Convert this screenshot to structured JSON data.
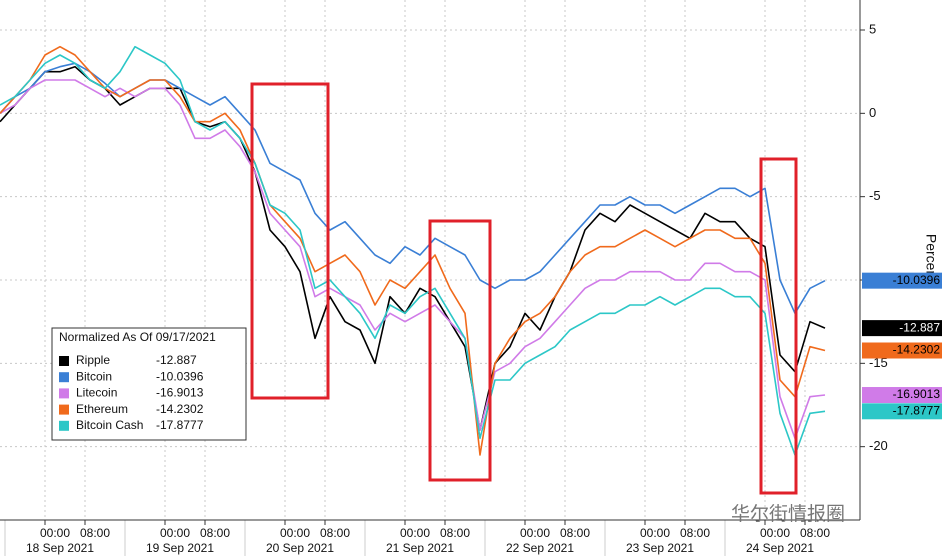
{
  "chart_data": {
    "type": "line",
    "y_label": "Percent",
    "legend_title": "Normalized As Of 09/17/2021",
    "watermark": "华尔街情报圈",
    "x": [
      "2021-09-17 15:00",
      "2021-09-17 18:00",
      "2021-09-17 21:00",
      "2021-09-18 00:00",
      "2021-09-18 03:00",
      "2021-09-18 06:00",
      "2021-09-18 09:00",
      "2021-09-18 12:00",
      "2021-09-18 15:00",
      "2021-09-18 18:00",
      "2021-09-18 21:00",
      "2021-09-19 00:00",
      "2021-09-19 03:00",
      "2021-09-19 06:00",
      "2021-09-19 09:00",
      "2021-09-19 12:00",
      "2021-09-19 15:00",
      "2021-09-19 18:00",
      "2021-09-19 21:00",
      "2021-09-20 00:00",
      "2021-09-20 03:00",
      "2021-09-20 06:00",
      "2021-09-20 09:00",
      "2021-09-20 12:00",
      "2021-09-20 15:00",
      "2021-09-20 18:00",
      "2021-09-20 21:00",
      "2021-09-21 00:00",
      "2021-09-21 03:00",
      "2021-09-21 06:00",
      "2021-09-21 09:00",
      "2021-09-21 12:00",
      "2021-09-21 15:00",
      "2021-09-21 18:00",
      "2021-09-21 21:00",
      "2021-09-22 00:00",
      "2021-09-22 03:00",
      "2021-09-22 06:00",
      "2021-09-22 09:00",
      "2021-09-22 12:00",
      "2021-09-22 15:00",
      "2021-09-22 18:00",
      "2021-09-22 21:00",
      "2021-09-23 00:00",
      "2021-09-23 03:00",
      "2021-09-23 06:00",
      "2021-09-23 09:00",
      "2021-09-23 12:00",
      "2021-09-23 15:00",
      "2021-09-23 18:00",
      "2021-09-23 21:00",
      "2021-09-24 00:00",
      "2021-09-24 03:00",
      "2021-09-24 06:00",
      "2021-09-24 09:00",
      "2021-09-24 12:00"
    ],
    "xlim": [
      "2021-09-17 15:00",
      "2021-09-24 19:00"
    ],
    "xticks": [
      {
        "value": "2021-09-18 00:00",
        "label": "00:00"
      },
      {
        "value": "2021-09-18 08:00",
        "label": "08:00"
      },
      {
        "value": "2021-09-19 00:00",
        "label": "00:00"
      },
      {
        "value": "2021-09-19 08:00",
        "label": "08:00"
      },
      {
        "value": "2021-09-20 00:00",
        "label": "00:00"
      },
      {
        "value": "2021-09-20 08:00",
        "label": "08:00"
      },
      {
        "value": "2021-09-21 00:00",
        "label": "00:00"
      },
      {
        "value": "2021-09-21 08:00",
        "label": "08:00"
      },
      {
        "value": "2021-09-22 00:00",
        "label": "00:00"
      },
      {
        "value": "2021-09-22 08:00",
        "label": "08:00"
      },
      {
        "value": "2021-09-23 00:00",
        "label": "00:00"
      },
      {
        "value": "2021-09-23 08:00",
        "label": "08:00"
      },
      {
        "value": "2021-09-24 00:00",
        "label": "00:00"
      },
      {
        "value": "2021-09-24 08:00",
        "label": "08:00"
      }
    ],
    "x_date_labels": [
      {
        "value": "2021-09-18",
        "label": "18 Sep 2021"
      },
      {
        "value": "2021-09-19",
        "label": "19 Sep 2021"
      },
      {
        "value": "2021-09-20",
        "label": "20 Sep 2021"
      },
      {
        "value": "2021-09-21",
        "label": "21 Sep 2021"
      },
      {
        "value": "2021-09-22",
        "label": "22 Sep 2021"
      },
      {
        "value": "2021-09-23",
        "label": "23 Sep 2021"
      },
      {
        "value": "2021-09-24",
        "label": "24 Sep 2021"
      }
    ],
    "ylim": [
      -24.4,
      6.8
    ],
    "yticks": [
      5,
      0,
      -5,
      -10,
      -15,
      -20
    ],
    "grid": true,
    "series": [
      {
        "name": "Ripple",
        "color": "#000000",
        "last": -12.887,
        "values": [
          -0.5,
          0.5,
          1.5,
          2.5,
          2.5,
          2.8,
          2.0,
          1.5,
          0.5,
          1.0,
          1.5,
          1.5,
          1.5,
          -0.5,
          -0.8,
          -0.5,
          -1.5,
          -3.5,
          -7.0,
          -8.0,
          -9.5,
          -13.5,
          -11.0,
          -12.5,
          -13.0,
          -15.0,
          -11.0,
          -12.0,
          -10.5,
          -11.0,
          -12.5,
          -14.0,
          -19.0,
          -15.0,
          -14.0,
          -12.0,
          -13.0,
          -11.0,
          -9.5,
          -7.0,
          -6.0,
          -6.5,
          -5.5,
          -6.0,
          -6.5,
          -7.0,
          -7.5,
          -6.0,
          -6.5,
          -6.5,
          -7.5,
          -8.0,
          -14.5,
          -15.5,
          -12.5,
          -12.887
        ]
      },
      {
        "name": "Bitcoin",
        "color": "#3a7fd5",
        "last": -10.0396,
        "values": [
          0,
          1.0,
          1.5,
          2.5,
          2.8,
          3.0,
          2.5,
          1.8,
          1.0,
          1.5,
          2.0,
          2.0,
          1.5,
          1.0,
          0.5,
          1.0,
          0,
          -1.0,
          -3.0,
          -3.5,
          -4.0,
          -6.0,
          -7.0,
          -6.5,
          -7.5,
          -8.5,
          -9.0,
          -8.0,
          -8.5,
          -7.5,
          -8.0,
          -8.5,
          -10.0,
          -10.5,
          -10.0,
          -10.0,
          -9.5,
          -8.5,
          -7.5,
          -6.5,
          -5.5,
          -5.5,
          -5.0,
          -5.5,
          -5.5,
          -6.0,
          -5.5,
          -5.0,
          -4.5,
          -4.5,
          -5.0,
          -4.5,
          -10.0,
          -12.0,
          -10.5,
          -10.0396
        ]
      },
      {
        "name": "Litecoin",
        "color": "#d07be8",
        "last": -16.9013,
        "values": [
          0,
          0.5,
          1.5,
          2,
          2,
          2,
          1.5,
          1,
          1.5,
          1,
          1.5,
          1.5,
          0.5,
          -1.5,
          -1.5,
          -1,
          -2,
          -3.5,
          -6,
          -7,
          -8,
          -11,
          -10.5,
          -11,
          -11.5,
          -13,
          -12,
          -12.5,
          -12,
          -11.5,
          -12.5,
          -13.5,
          -19,
          -15.5,
          -15,
          -14,
          -13.5,
          -12.5,
          -11.5,
          -10.5,
          -10,
          -10,
          -9.5,
          -9.5,
          -9.5,
          -10,
          -10,
          -9,
          -9,
          -9.5,
          -9.5,
          -10,
          -17,
          -19.5,
          -17,
          -16.9013
        ]
      },
      {
        "name": "Ethereum",
        "color": "#f06a1c",
        "last": -14.2302,
        "values": [
          0,
          1,
          2,
          3.5,
          4.0,
          3.5,
          2.5,
          1.5,
          1.0,
          1.5,
          2.0,
          2.0,
          1.0,
          -0.5,
          -0.5,
          0,
          -1,
          -3,
          -5.5,
          -6.5,
          -7.5,
          -9.5,
          -9.0,
          -8.5,
          -9.5,
          -11.5,
          -10,
          -10.5,
          -9.5,
          -8.5,
          -10.5,
          -12,
          -20.5,
          -15,
          -13.5,
          -12.5,
          -12,
          -11,
          -9.5,
          -8.5,
          -8,
          -8,
          -7.5,
          -7,
          -7.5,
          -8,
          -7.5,
          -7,
          -7,
          -7.5,
          -7.5,
          -9,
          -16,
          -17,
          -14,
          -14.2302
        ]
      },
      {
        "name": "Bitcoin Cash",
        "color": "#2cc7c7",
        "last": -17.8777,
        "values": [
          0.5,
          1,
          2,
          3,
          3.5,
          3,
          2,
          1.5,
          2.5,
          4,
          3.5,
          3,
          2,
          -0.5,
          -1,
          -0.5,
          -1.5,
          -3,
          -5.5,
          -6,
          -7,
          -10.5,
          -10,
          -11,
          -12,
          -13.5,
          -11.5,
          -12,
          -11,
          -10.5,
          -12,
          -13.5,
          -19.5,
          -16,
          -16,
          -15,
          -14.5,
          -14,
          -13,
          -12.5,
          -12,
          -12,
          -11.5,
          -11.5,
          -11,
          -11.5,
          -11,
          -10.5,
          -10.5,
          -11,
          -11,
          -12,
          -18,
          -20.5,
          -18,
          -17.8777
        ]
      }
    ]
  }
}
